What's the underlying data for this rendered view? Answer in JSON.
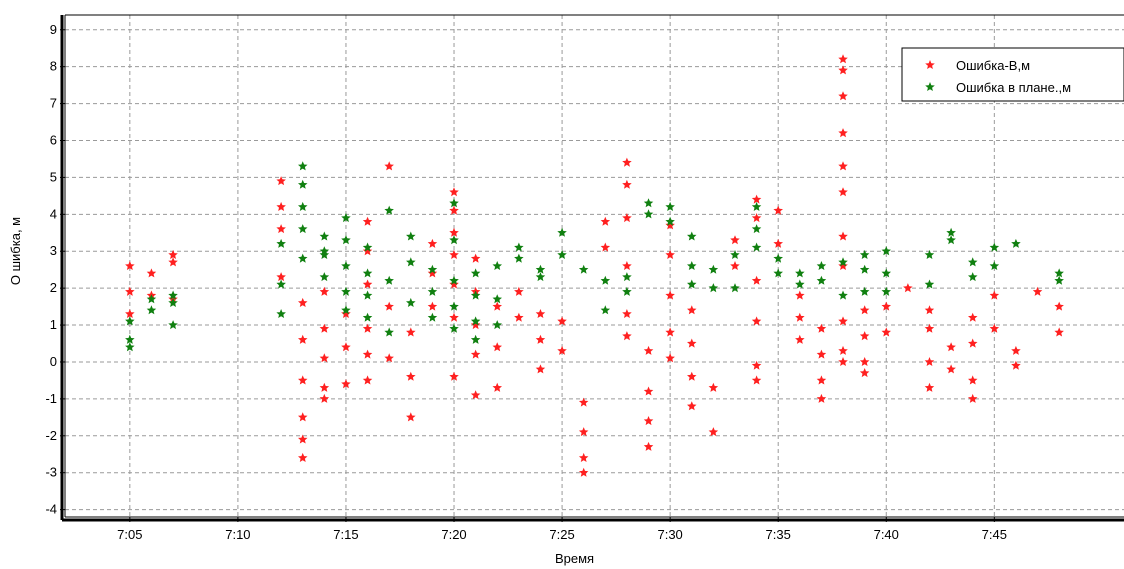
{
  "chart_data": {
    "type": "scatter",
    "title": "",
    "xlabel": "Время",
    "ylabel": "О шибка, м",
    "xlim": [
      "7:02",
      "7:51"
    ],
    "ylim": [
      -4.2,
      9.4
    ],
    "xticks": [
      "7:05",
      "7:10",
      "7:15",
      "7:20",
      "7:25",
      "7:30",
      "7:35",
      "7:40",
      "7:45"
    ],
    "yticks": [
      -4,
      -3,
      -2,
      -1,
      0,
      1,
      2,
      3,
      4,
      5,
      6,
      7,
      8,
      9
    ],
    "grid": true,
    "legend_position": "top-right",
    "series": [
      {
        "name": "Ошибка-В,м",
        "color": "#ff2020",
        "marker": "star",
        "points": [
          [
            "7:05",
            2.6
          ],
          [
            "7:05",
            1.9
          ],
          [
            "7:05",
            1.3
          ],
          [
            "7:06",
            2.4
          ],
          [
            "7:06",
            1.8
          ],
          [
            "7:07",
            2.7
          ],
          [
            "7:07",
            2.9
          ],
          [
            "7:07",
            1.7
          ],
          [
            "7:12",
            4.9
          ],
          [
            "7:12",
            4.2
          ],
          [
            "7:12",
            3.6
          ],
          [
            "7:12",
            2.3
          ],
          [
            "7:13",
            1.6
          ],
          [
            "7:13",
            0.6
          ],
          [
            "7:13",
            -0.5
          ],
          [
            "7:13",
            -1.5
          ],
          [
            "7:13",
            -2.1
          ],
          [
            "7:13",
            -2.6
          ],
          [
            "7:14",
            0.9
          ],
          [
            "7:14",
            0.1
          ],
          [
            "7:14",
            -0.7
          ],
          [
            "7:14",
            -1.0
          ],
          [
            "7:14",
            1.9
          ],
          [
            "7:15",
            1.3
          ],
          [
            "7:15",
            0.4
          ],
          [
            "7:15",
            -0.6
          ],
          [
            "7:16",
            3.8
          ],
          [
            "7:16",
            3.0
          ],
          [
            "7:16",
            2.1
          ],
          [
            "7:16",
            0.9
          ],
          [
            "7:16",
            0.2
          ],
          [
            "7:16",
            -0.5
          ],
          [
            "7:17",
            5.3
          ],
          [
            "7:17",
            1.5
          ],
          [
            "7:17",
            0.1
          ],
          [
            "7:18",
            0.8
          ],
          [
            "7:18",
            -0.4
          ],
          [
            "7:18",
            -1.5
          ],
          [
            "7:19",
            3.2
          ],
          [
            "7:19",
            2.4
          ],
          [
            "7:19",
            1.5
          ],
          [
            "7:20",
            4.6
          ],
          [
            "7:20",
            4.1
          ],
          [
            "7:20",
            3.5
          ],
          [
            "7:20",
            2.9
          ],
          [
            "7:20",
            2.1
          ],
          [
            "7:20",
            1.2
          ],
          [
            "7:20",
            -0.4
          ],
          [
            "7:21",
            2.8
          ],
          [
            "7:21",
            1.9
          ],
          [
            "7:21",
            1.0
          ],
          [
            "7:21",
            0.2
          ],
          [
            "7:21",
            -0.9
          ],
          [
            "7:22",
            1.5
          ],
          [
            "7:22",
            0.4
          ],
          [
            "7:22",
            -0.7
          ],
          [
            "7:23",
            1.9
          ],
          [
            "7:23",
            1.2
          ],
          [
            "7:24",
            1.3
          ],
          [
            "7:24",
            0.6
          ],
          [
            "7:24",
            -0.2
          ],
          [
            "7:25",
            1.1
          ],
          [
            "7:25",
            0.3
          ],
          [
            "7:26",
            -1.1
          ],
          [
            "7:26",
            -1.9
          ],
          [
            "7:26",
            -2.6
          ],
          [
            "7:26",
            -3.0
          ],
          [
            "7:27",
            3.8
          ],
          [
            "7:27",
            3.1
          ],
          [
            "7:28",
            5.4
          ],
          [
            "7:28",
            4.8
          ],
          [
            "7:28",
            3.9
          ],
          [
            "7:28",
            2.6
          ],
          [
            "7:28",
            1.3
          ],
          [
            "7:28",
            0.7
          ],
          [
            "7:29",
            -0.8
          ],
          [
            "7:29",
            -1.6
          ],
          [
            "7:29",
            -2.3
          ],
          [
            "7:29",
            0.3
          ],
          [
            "7:30",
            0.8
          ],
          [
            "7:30",
            1.8
          ],
          [
            "7:30",
            2.9
          ],
          [
            "7:30",
            3.7
          ],
          [
            "7:30",
            0.1
          ],
          [
            "7:31",
            1.4
          ],
          [
            "7:31",
            0.5
          ],
          [
            "7:31",
            -0.4
          ],
          [
            "7:31",
            -1.2
          ],
          [
            "7:32",
            -1.9
          ],
          [
            "7:32",
            -0.7
          ],
          [
            "7:33",
            2.6
          ],
          [
            "7:33",
            3.3
          ],
          [
            "7:34",
            3.9
          ],
          [
            "7:34",
            4.4
          ],
          [
            "7:34",
            2.2
          ],
          [
            "7:34",
            1.1
          ],
          [
            "7:34",
            -0.1
          ],
          [
            "7:34",
            -0.5
          ],
          [
            "7:35",
            4.1
          ],
          [
            "7:35",
            3.2
          ],
          [
            "7:36",
            1.8
          ],
          [
            "7:36",
            1.2
          ],
          [
            "7:36",
            0.6
          ],
          [
            "7:37",
            0.9
          ],
          [
            "7:37",
            0.2
          ],
          [
            "7:37",
            -0.5
          ],
          [
            "7:37",
            -1.0
          ],
          [
            "7:38",
            1.1
          ],
          [
            "7:38",
            0.3
          ],
          [
            "7:38",
            0.0
          ],
          [
            "7:38",
            8.2
          ],
          [
            "7:38",
            7.9
          ],
          [
            "7:38",
            7.2
          ],
          [
            "7:38",
            6.2
          ],
          [
            "7:38",
            5.3
          ],
          [
            "7:38",
            4.6
          ],
          [
            "7:38",
            3.4
          ],
          [
            "7:38",
            2.6
          ],
          [
            "7:39",
            1.4
          ],
          [
            "7:39",
            0.7
          ],
          [
            "7:39",
            0.0
          ],
          [
            "7:39",
            -0.3
          ],
          [
            "7:40",
            0.8
          ],
          [
            "7:40",
            1.5
          ],
          [
            "7:41",
            2.0
          ],
          [
            "7:42",
            1.4
          ],
          [
            "7:42",
            0.9
          ],
          [
            "7:42",
            0.0
          ],
          [
            "7:42",
            -0.7
          ],
          [
            "7:43",
            0.4
          ],
          [
            "7:43",
            -0.2
          ],
          [
            "7:44",
            1.2
          ],
          [
            "7:44",
            0.5
          ],
          [
            "7:44",
            -0.5
          ],
          [
            "7:44",
            -1.0
          ],
          [
            "7:45",
            1.8
          ],
          [
            "7:45",
            0.9
          ],
          [
            "7:46",
            0.3
          ],
          [
            "7:46",
            -0.1
          ],
          [
            "7:47",
            1.9
          ],
          [
            "7:48",
            1.5
          ],
          [
            "7:48",
            0.8
          ]
        ]
      },
      {
        "name": "Ошибка в плане.,м",
        "color": "#108010",
        "marker": "star",
        "points": [
          [
            "7:05",
            1.1
          ],
          [
            "7:05",
            0.6
          ],
          [
            "7:05",
            0.4
          ],
          [
            "7:06",
            1.4
          ],
          [
            "7:06",
            1.7
          ],
          [
            "7:07",
            1.6
          ],
          [
            "7:07",
            1.0
          ],
          [
            "7:07",
            1.8
          ],
          [
            "7:12",
            2.1
          ],
          [
            "7:12",
            1.3
          ],
          [
            "7:12",
            3.2
          ],
          [
            "7:13",
            5.3
          ],
          [
            "7:13",
            4.8
          ],
          [
            "7:13",
            4.2
          ],
          [
            "7:13",
            3.6
          ],
          [
            "7:13",
            2.8
          ],
          [
            "7:14",
            3.4
          ],
          [
            "7:14",
            2.9
          ],
          [
            "7:14",
            2.3
          ],
          [
            "7:14",
            3.0
          ],
          [
            "7:15",
            3.9
          ],
          [
            "7:15",
            3.3
          ],
          [
            "7:15",
            2.6
          ],
          [
            "7:15",
            1.9
          ],
          [
            "7:15",
            1.4
          ],
          [
            "7:16",
            3.1
          ],
          [
            "7:16",
            2.4
          ],
          [
            "7:16",
            1.8
          ],
          [
            "7:16",
            1.2
          ],
          [
            "7:17",
            4.1
          ],
          [
            "7:17",
            2.2
          ],
          [
            "7:17",
            0.8
          ],
          [
            "7:18",
            3.4
          ],
          [
            "7:18",
            2.7
          ],
          [
            "7:18",
            1.6
          ],
          [
            "7:19",
            2.5
          ],
          [
            "7:19",
            1.9
          ],
          [
            "7:19",
            1.2
          ],
          [
            "7:20",
            4.3
          ],
          [
            "7:20",
            3.3
          ],
          [
            "7:20",
            2.2
          ],
          [
            "7:20",
            1.5
          ],
          [
            "7:20",
            0.9
          ],
          [
            "7:21",
            2.4
          ],
          [
            "7:21",
            1.8
          ],
          [
            "7:21",
            1.1
          ],
          [
            "7:21",
            0.6
          ],
          [
            "7:22",
            2.6
          ],
          [
            "7:22",
            1.7
          ],
          [
            "7:22",
            1.0
          ],
          [
            "7:23",
            3.1
          ],
          [
            "7:23",
            2.8
          ],
          [
            "7:24",
            2.5
          ],
          [
            "7:24",
            2.3
          ],
          [
            "7:25",
            3.5
          ],
          [
            "7:25",
            2.9
          ],
          [
            "7:26",
            2.5
          ],
          [
            "7:27",
            2.2
          ],
          [
            "7:27",
            1.4
          ],
          [
            "7:28",
            2.3
          ],
          [
            "7:28",
            1.9
          ],
          [
            "7:29",
            4.3
          ],
          [
            "7:29",
            4.0
          ],
          [
            "7:30",
            4.2
          ],
          [
            "7:30",
            3.8
          ],
          [
            "7:31",
            3.4
          ],
          [
            "7:31",
            2.6
          ],
          [
            "7:31",
            2.1
          ],
          [
            "7:32",
            2.5
          ],
          [
            "7:32",
            2.0
          ],
          [
            "7:33",
            2.9
          ],
          [
            "7:33",
            2.0
          ],
          [
            "7:34",
            4.2
          ],
          [
            "7:34",
            3.6
          ],
          [
            "7:34",
            3.1
          ],
          [
            "7:35",
            2.8
          ],
          [
            "7:35",
            2.4
          ],
          [
            "7:36",
            2.4
          ],
          [
            "7:36",
            2.1
          ],
          [
            "7:37",
            2.6
          ],
          [
            "7:37",
            2.2
          ],
          [
            "7:38",
            2.7
          ],
          [
            "7:38",
            1.8
          ],
          [
            "7:39",
            2.5
          ],
          [
            "7:39",
            1.9
          ],
          [
            "7:39",
            2.9
          ],
          [
            "7:40",
            2.4
          ],
          [
            "7:40",
            1.9
          ],
          [
            "7:40",
            3.0
          ],
          [
            "7:42",
            2.1
          ],
          [
            "7:42",
            2.9
          ],
          [
            "7:43",
            3.3
          ],
          [
            "7:43",
            3.5
          ],
          [
            "7:44",
            2.7
          ],
          [
            "7:44",
            2.3
          ],
          [
            "7:45",
            2.6
          ],
          [
            "7:45",
            3.1
          ],
          [
            "7:46",
            3.2
          ],
          [
            "7:48",
            2.4
          ],
          [
            "7:48",
            2.2
          ]
        ]
      }
    ]
  }
}
